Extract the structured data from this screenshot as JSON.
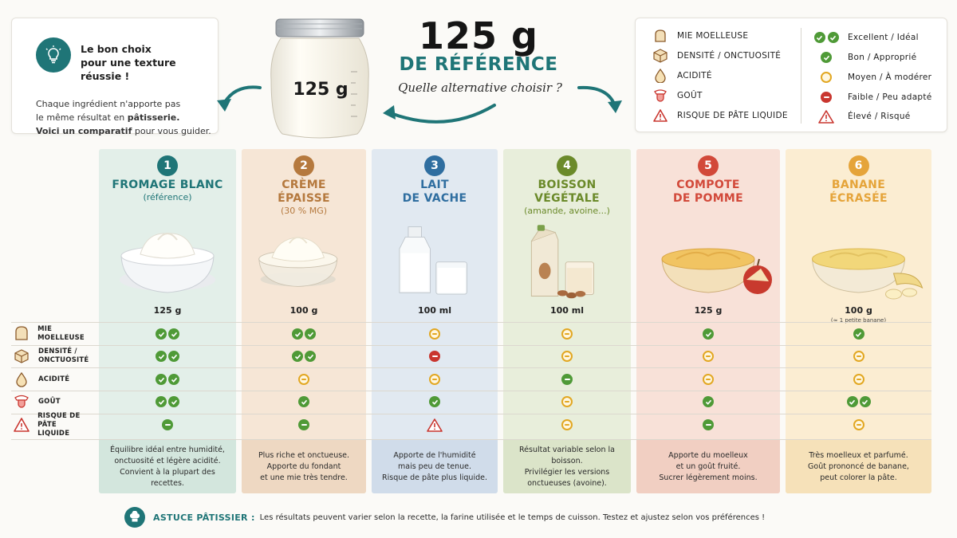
{
  "intro": {
    "title_line1": "Le bon choix",
    "title_line2": "pour une texture réussie !",
    "text_line1": "Chaque ingrédient n'apporte pas",
    "text_line2_a": "le même résultat en ",
    "text_line2_b": "pâtisserie.",
    "text_line3_a": "Voici un ",
    "text_line3_b": "comparatif",
    "text_line3_c": " pour vous guider.",
    "icon": "lightbulb-icon"
  },
  "hero": {
    "jar_label": "125 g",
    "title": "125 g",
    "subtitle": "DE RÉFÉRENCE",
    "tagline": "Quelle alternative choisir ?"
  },
  "legend": {
    "criteria": [
      {
        "icon": "bread-icon",
        "label": "MIE MOELLEUSE"
      },
      {
        "icon": "cube-icon",
        "label": "DENSITÉ / ONCTUOSITÉ"
      },
      {
        "icon": "drop-icon",
        "label": "ACIDITÉ"
      },
      {
        "icon": "tongue-icon",
        "label": "GOÛT"
      },
      {
        "icon": "warning-icon",
        "label": "RISQUE DE PÂTE LIQUIDE"
      }
    ],
    "ratings": [
      {
        "icon": "double-check-icon",
        "label": "Excellent / Idéal"
      },
      {
        "icon": "check-icon",
        "label": "Bon / Approprié"
      },
      {
        "icon": "neutral-circle-icon",
        "label": "Moyen / À modérer"
      },
      {
        "icon": "minus-circle-icon",
        "label": "Faible / Peu adapté"
      },
      {
        "icon": "warning-icon",
        "label": "Élevé / Risqué"
      }
    ]
  },
  "rows": [
    {
      "label_line1": "MIE MOELLEUSE",
      "label_line2": "",
      "icon": "bread-icon"
    },
    {
      "label_line1": "DENSITÉ /",
      "label_line2": "ONCTUOSITÉ",
      "icon": "cube-icon"
    },
    {
      "label_line1": "ACIDITÉ",
      "label_line2": "",
      "icon": "drop-icon"
    },
    {
      "label_line1": "GOÛT",
      "label_line2": "",
      "icon": "tongue-icon"
    },
    {
      "label_line1": "RISQUE DE PÂTE",
      "label_line2": "LIQUIDE",
      "icon": "warning-icon"
    }
  ],
  "columns": [
    {
      "number": "1",
      "title_line1": "FROMAGE BLANC",
      "title_line2": "",
      "subtitle": "(référence)",
      "quantity": "125 g",
      "quantity_note": "",
      "accent": "#1f7577",
      "ratings": [
        "excellent",
        "excellent",
        "excellent",
        "excellent",
        "good-bar"
      ],
      "desc": [
        "Équilibre idéal entre humidité,",
        "onctuosité et légère acidité.",
        "Convient à la plupart des recettes."
      ]
    },
    {
      "number": "2",
      "title_line1": "CRÈME",
      "title_line2": "ÉPAISSE",
      "subtitle": "(30 % MG)",
      "quantity": "100 g",
      "quantity_note": "",
      "accent": "#b5793e",
      "ratings": [
        "excellent",
        "excellent",
        "medium",
        "good",
        "good-bar"
      ],
      "desc": [
        "Plus riche et onctueuse.",
        "Apporte du fondant",
        "et une mie très tendre."
      ]
    },
    {
      "number": "3",
      "title_line1": "LAIT",
      "title_line2": "DE VACHE",
      "subtitle": "",
      "quantity": "100 ml",
      "quantity_note": "",
      "accent": "#2f6ea0",
      "ratings": [
        "medium",
        "low",
        "medium",
        "good",
        "high"
      ],
      "desc": [
        "Apporte de l'humidité",
        "mais peu de tenue.",
        "Risque de pâte plus liquide."
      ]
    },
    {
      "number": "4",
      "title_line1": "BOISSON",
      "title_line2": "VÉGÉTALE",
      "subtitle": "(amande, avoine...)",
      "quantity": "100 ml",
      "quantity_note": "",
      "accent": "#6b8a2a",
      "ratings": [
        "medium",
        "medium",
        "good-bar",
        "medium",
        "medium"
      ],
      "desc": [
        "Résultat variable selon la boisson.",
        "Privilégier les versions",
        "onctueuses (avoine)."
      ]
    },
    {
      "number": "5",
      "title_line1": "COMPOTE",
      "title_line2": "DE POMME",
      "subtitle": "",
      "quantity": "125 g",
      "quantity_note": "",
      "accent": "#d2493a",
      "ratings": [
        "good",
        "medium",
        "medium",
        "good",
        "good-bar"
      ],
      "desc": [
        "Apporte du moelleux",
        "et un goût fruité.",
        "Sucrer légèrement moins."
      ]
    },
    {
      "number": "6",
      "title_line1": "BANANE",
      "title_line2": "ÉCRASÉE",
      "subtitle": "",
      "quantity": "100 g",
      "quantity_note": "(≈ 1 petite banane)",
      "accent": "#e5a43a",
      "ratings": [
        "good",
        "medium",
        "medium",
        "excellent",
        "medium"
      ],
      "desc": [
        "Très moelleux et parfumé.",
        "Goût prononcé de banane,",
        "peut colorer la pâte."
      ]
    }
  ],
  "tip": {
    "icon": "chef-hat-icon",
    "label": "ASTUCE PÂTISSIER :",
    "text": "Les résultats peuvent varier selon la recette, la farine utilisée et le temps de cuisson. Testez et ajustez selon vos préférences !"
  }
}
